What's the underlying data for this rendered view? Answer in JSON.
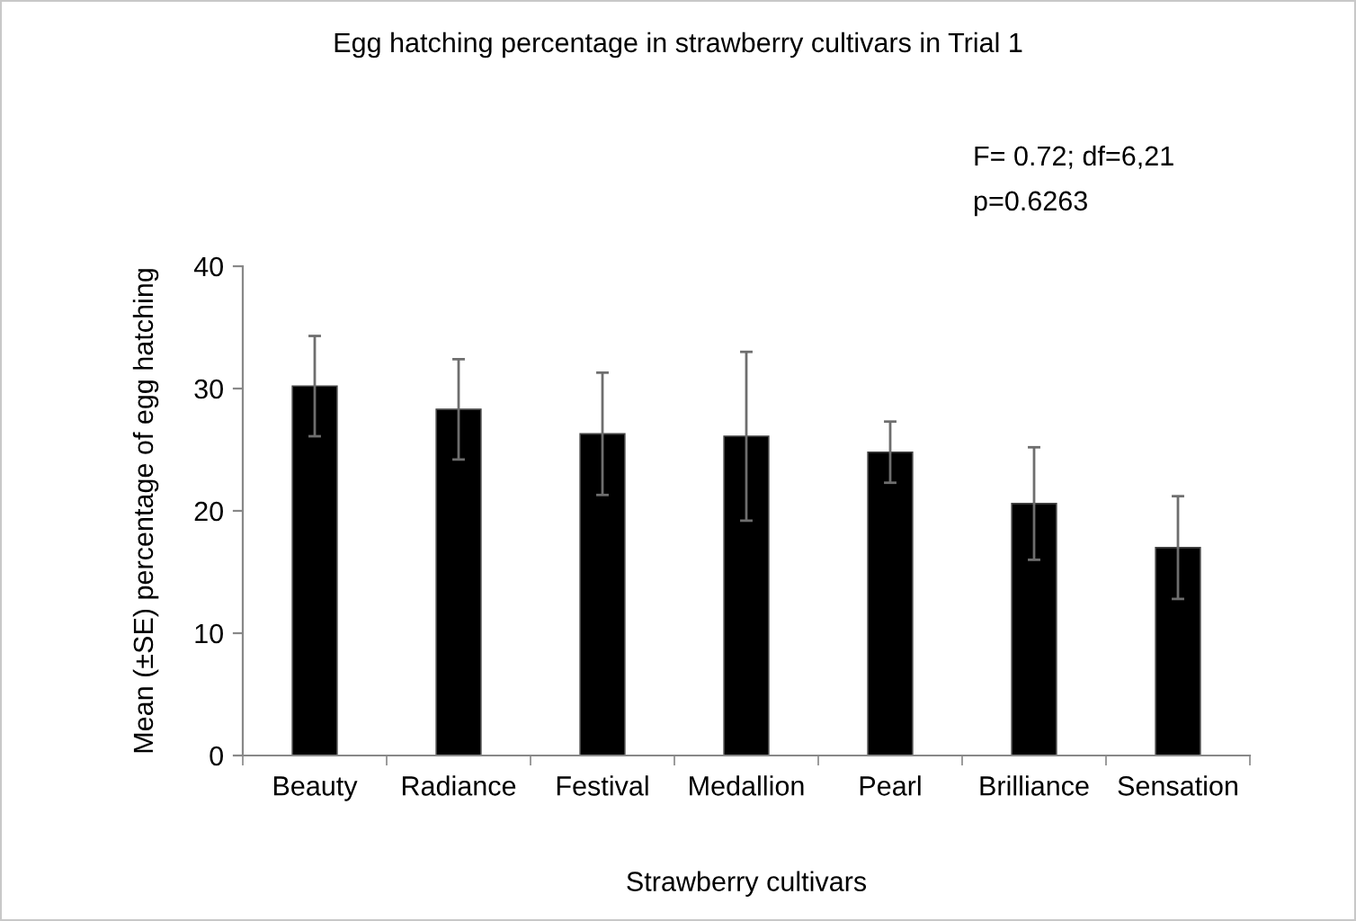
{
  "chart_data": {
    "type": "bar",
    "title": "Egg hatching percentage in strawberry cultivars in Trial 1",
    "xlabel": "Strawberry cultivars",
    "ylabel": "Mean (±SE) percentage of egg hatching",
    "categories": [
      "Beauty",
      "Radiance",
      "Festival",
      "Medallion",
      "Pearl",
      "Brilliance",
      "Sensation"
    ],
    "values": [
      30.2,
      28.3,
      26.3,
      26.1,
      24.8,
      20.6,
      17.0
    ],
    "errors": [
      4.1,
      4.1,
      5.0,
      6.9,
      2.5,
      4.6,
      4.2
    ],
    "color": "#000000",
    "ylim": [
      0,
      40
    ],
    "yticks": [
      0,
      10,
      20,
      30,
      40
    ],
    "grid": false,
    "legend": false,
    "annotations": [
      "F= 0.72; df=6,21",
      "p=0.6263"
    ]
  }
}
